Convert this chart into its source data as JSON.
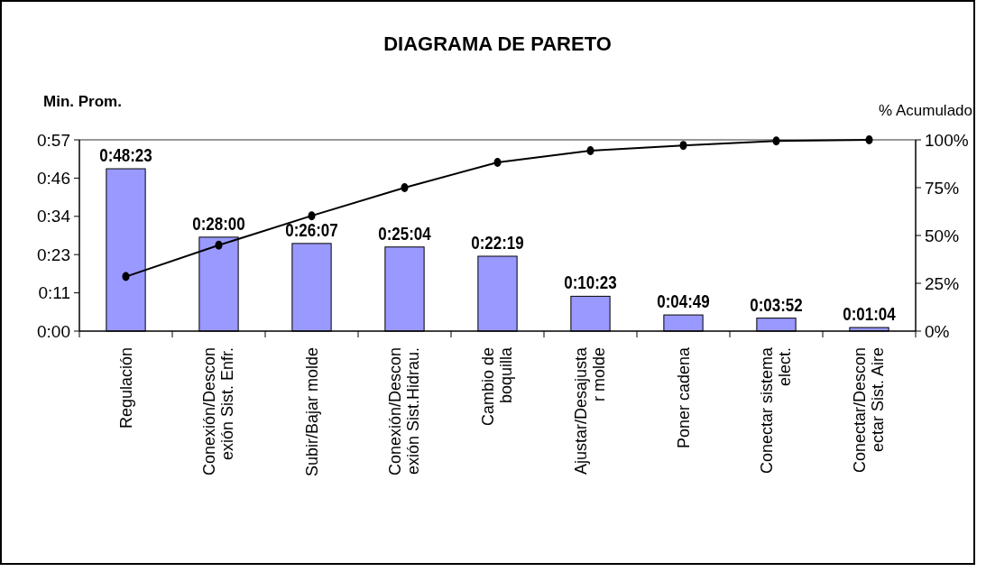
{
  "chart_data": {
    "type": "bar",
    "title": "DIAGRAMA DE PARETO",
    "ylabel": "Min. Prom.",
    "y2label": "% Acumulado",
    "categories": [
      "Regulación",
      "Conexión/Descon\nexión Sist. Enfr.",
      "Subir/Bajar molde",
      "Conexión/Descon\nexión Sist.Hidrau.",
      "Cambio de\nboquilla",
      "Ajustar/Desajusta\nr molde",
      "Poner cadena",
      "Conectar sistema\nelect.",
      "Conectar/Descon\nectar Sist. Aire"
    ],
    "series": [
      {
        "color": "#9999ff",
        "values": [
          48.383,
          28.0,
          26.117,
          25.067,
          22.317,
          10.383,
          4.817,
          3.867,
          1.067
        ],
        "value_labels": [
          "0:48:23",
          "0:28:00",
          "0:26:07",
          "0:25:04",
          "0:22:19",
          "0:10:23",
          "0:04:49",
          "0:03:52",
          "0:01:04"
        ]
      },
      {
        "type": "line",
        "axis": "y2",
        "color": "#000000",
        "marker": "circle",
        "values": [
          28.5,
          44.9,
          60.3,
          75.0,
          88.2,
          94.3,
          97.1,
          99.4,
          100
        ]
      }
    ],
    "ylim": [
      0,
      57
    ],
    "yticks": [
      {
        "value": 0,
        "label": "0:00"
      },
      {
        "value": 11.4,
        "label": "0:11"
      },
      {
        "value": 22.8,
        "label": "0:23"
      },
      {
        "value": 34.2,
        "label": "0:34"
      },
      {
        "value": 45.6,
        "label": "0:46"
      },
      {
        "value": 57,
        "label": "0:57"
      }
    ],
    "y2lim": [
      0,
      100
    ],
    "y2ticks": [
      {
        "value": 0,
        "label": "0%"
      },
      {
        "value": 25,
        "label": "25%"
      },
      {
        "value": 50,
        "label": "50%"
      },
      {
        "value": 75,
        "label": "75%"
      },
      {
        "value": 100,
        "label": "100%"
      }
    ],
    "grid": false
  }
}
